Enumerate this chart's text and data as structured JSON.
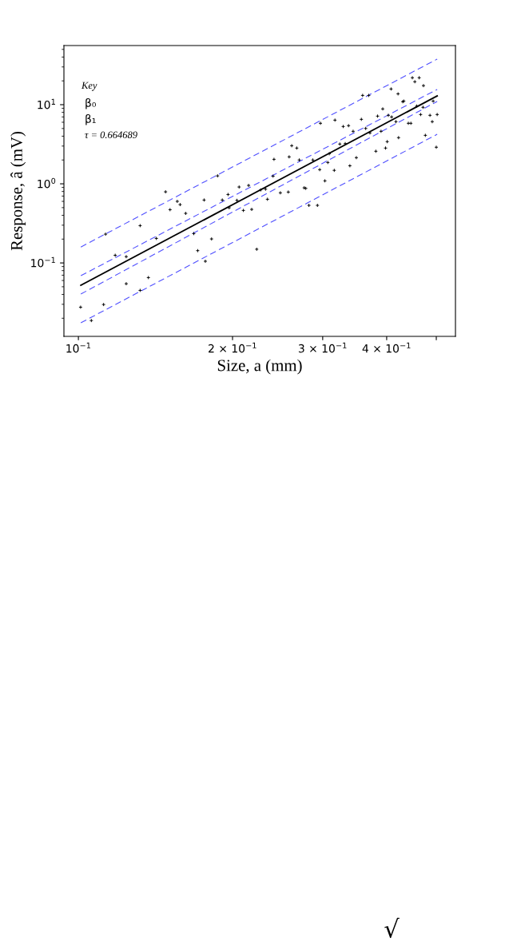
{
  "chart_data": {
    "type": "scatter",
    "xlabel": "Size, a (mm)",
    "ylabel": "Response, â (mV)",
    "log": "xy",
    "grid": false,
    "legend": false,
    "xlim": [
      0.0937,
      0.545
    ],
    "ylim": [
      0.0118,
      55.9
    ],
    "xticks": [
      {
        "value": 0.1,
        "label": "10$^{−1}$"
      },
      {
        "value": 0.2,
        "label": "2 × 10$^{−1}$"
      },
      {
        "value": 0.3,
        "label": "3 × 10$^{−1}$"
      },
      {
        "value": 0.4,
        "label": "4 × 10$^{−1}$"
      },
      {
        "value": 0.5,
        "label": null
      }
    ],
    "yticks": [
      {
        "value": 0.1,
        "label": "10$^{−1}$"
      },
      {
        "value": 1,
        "label": "10$^{0}$"
      },
      {
        "value": 10,
        "label": "10$^{1}$"
      }
    ],
    "annotations": [
      "Key",
      "β₀",
      "β₁",
      "τ = 0.664689",
      "√"
    ],
    "series": [
      {
        "color": "#000000",
        "marker": "cross",
        "x": [
          0.101,
          0.106,
          0.112,
          0.113,
          0.118,
          0.124,
          0.124,
          0.132,
          0.132,
          0.137,
          0.142,
          0.148,
          0.151,
          0.156,
          0.158,
          0.162,
          0.168,
          0.171,
          0.177,
          0.182,
          0.176,
          0.187,
          0.191,
          0.196,
          0.197,
          0.206,
          0.204,
          0.21,
          0.215,
          0.218,
          0.223,
          0.227,
          0.232,
          0.234,
          0.24,
          0.241,
          0.248,
          0.257,
          0.258,
          0.261,
          0.267,
          0.27,
          0.276,
          0.278,
          0.282,
          0.287,
          0.293,
          0.297,
          0.296,
          0.303,
          0.307,
          0.309,
          0.316,
          0.317,
          0.324,
          0.329,
          0.332,
          0.337,
          0.339,
          0.344,
          0.349,
          0.357,
          0.359,
          0.364,
          0.369,
          0.371,
          0.381,
          0.384,
          0.39,
          0.393,
          0.398,
          0.401,
          0.403,
          0.408,
          0.409,
          0.417,
          0.421,
          0.422,
          0.43,
          0.432,
          0.441,
          0.446,
          0.449,
          0.454,
          0.458,
          0.463,
          0.466,
          0.471,
          0.472,
          0.476,
          0.486,
          0.491,
          0.493,
          0.5,
          0.502
        ],
        "values": [
          0.0276,
          0.0187,
          0.0298,
          0.231,
          0.125,
          0.12,
          0.0546,
          0.296,
          0.045,
          0.0653,
          0.204,
          0.792,
          0.471,
          0.6,
          0.546,
          0.423,
          0.235,
          0.143,
          0.105,
          0.201,
          0.624,
          1.26,
          0.624,
          0.733,
          0.498,
          0.911,
          0.618,
          0.461,
          0.954,
          0.475,
          0.149,
          0.837,
          0.856,
          0.638,
          1.25,
          2.04,
          0.769,
          0.787,
          2.19,
          3.03,
          2.83,
          2.0,
          0.89,
          0.876,
          0.534,
          2.0,
          0.534,
          5.82,
          1.51,
          1.09,
          1.86,
          2.4,
          1.48,
          6.38,
          3.18,
          5.3,
          3.22,
          5.43,
          1.69,
          4.61,
          2.14,
          6.53,
          13.1,
          5.01,
          13.1,
          4.4,
          2.58,
          7.17,
          4.61,
          8.84,
          2.83,
          3.41,
          7.34,
          15.8,
          7.0,
          6.1,
          13.7,
          3.83,
          10.9,
          11.1,
          5.82,
          5.82,
          21.9,
          19.5,
          9.61,
          21.9,
          7.51,
          9.27,
          17.4,
          4.1,
          7.34,
          6.1,
          11.1,
          2.9,
          7.51
        ]
      },
      {
        "type": "line",
        "color": "#000000",
        "line_style": "solid",
        "x": [
          0.1011,
          0.502
        ],
        "values": [
          0.0521,
          12.9
        ]
      },
      {
        "type": "line",
        "color": "#5050ff",
        "line_style": "dashed",
        "x": [
          0.1011,
          0.502
        ],
        "values": [
          0.159,
          37.7
        ]
      },
      {
        "type": "line",
        "color": "#5050ff",
        "line_style": "dashed",
        "x": [
          0.1011,
          0.502
        ],
        "values": [
          0.0689,
          15.6
        ]
      },
      {
        "type": "line",
        "color": "#5050ff",
        "line_style": "dashed",
        "x": [
          0.1011,
          0.502
        ],
        "values": [
          0.0404,
          11.0
        ]
      },
      {
        "type": "line",
        "color": "#5050ff",
        "line_style": "dashed",
        "x": [
          0.1011,
          0.502
        ],
        "values": [
          0.0175,
          4.23
        ]
      }
    ]
  }
}
